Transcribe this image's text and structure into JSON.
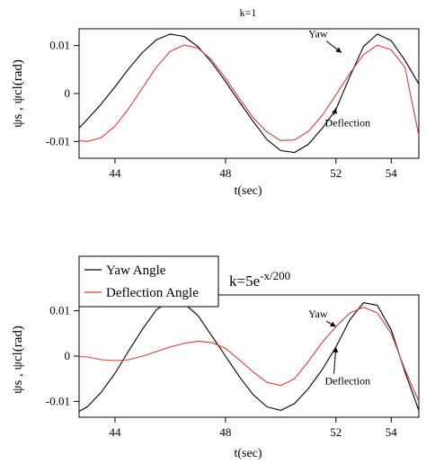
{
  "chart_data": [
    {
      "type": "line",
      "title": "k=1",
      "xlabel": "t(sec)",
      "ylabel": "ψs , ψcl(rad)",
      "xlim": [
        42.7,
        55.0
      ],
      "ylim": [
        -0.0135,
        0.0135
      ],
      "xticks": [
        "44",
        "48",
        "52",
        "54"
      ],
      "xtick_values": [
        44,
        48,
        52,
        54
      ],
      "yticks": [
        "0.01",
        "0",
        "-0.01"
      ],
      "ytick_values": [
        0.01,
        0,
        -0.01
      ],
      "grid": false,
      "series": [
        {
          "color": "#000000",
          "x": [
            42.7,
            43.0,
            43.5,
            44.0,
            44.5,
            45.0,
            45.5,
            46.0,
            46.5,
            47.0,
            47.5,
            48.0,
            48.5,
            49.0,
            49.5,
            50.0,
            50.5,
            51.0,
            51.5,
            52.0,
            52.5,
            53.0,
            53.5,
            54.0,
            54.5,
            55.0
          ],
          "y": [
            -0.0072,
            -0.0054,
            -0.0022,
            0.0014,
            0.0052,
            0.0086,
            0.0112,
            0.0124,
            0.0119,
            0.0098,
            0.0065,
            0.0025,
            -0.0017,
            -0.0058,
            -0.0096,
            -0.0119,
            -0.0123,
            -0.0106,
            -0.0073,
            -0.0033,
            0.0035,
            0.0098,
            0.0124,
            0.011,
            0.0069,
            0.002
          ]
        },
        {
          "color": "#e03a3a",
          "x": [
            42.7,
            43.0,
            43.5,
            44.0,
            44.5,
            45.0,
            45.5,
            46.0,
            46.5,
            47.0,
            47.5,
            48.0,
            48.5,
            49.0,
            49.5,
            50.0,
            50.5,
            51.0,
            51.5,
            52.0,
            52.5,
            53.0,
            53.5,
            54.0,
            54.5,
            55.0
          ],
          "y": [
            -0.0098,
            -0.01,
            -0.0092,
            -0.0068,
            -0.0031,
            0.0012,
            0.0055,
            0.0088,
            0.0101,
            0.0095,
            0.007,
            0.0032,
            -0.001,
            -0.005,
            -0.008,
            -0.0098,
            -0.0097,
            -0.0079,
            -0.0046,
            -0.0003,
            0.0042,
            0.0081,
            0.0101,
            0.0091,
            0.0055,
            -0.0088
          ]
        }
      ],
      "annotations": [
        {
          "text": "Yaw",
          "x": 51.0,
          "y": 0.0117
        },
        {
          "text": "Deflection",
          "x": 51.6,
          "y": -0.0068
        }
      ]
    },
    {
      "type": "line",
      "title": "k=5e",
      "title_superscript": "-x/200",
      "xlabel": "t(sec)",
      "ylabel": "ψs , ψcl(rad)",
      "xlim": [
        42.7,
        55.0
      ],
      "ylim": [
        -0.0135,
        0.0135
      ],
      "xticks": [
        "44",
        "48",
        "52",
        "54"
      ],
      "xtick_values": [
        44,
        48,
        52,
        54
      ],
      "yticks": [
        "0.01",
        "0",
        "-0.01"
      ],
      "ytick_values": [
        0.01,
        0,
        -0.01
      ],
      "grid": false,
      "legend_position": "top-left",
      "series": [
        {
          "name": "Yaw Angle",
          "color": "#000000",
          "x": [
            42.7,
            43.0,
            43.5,
            44.0,
            44.5,
            45.0,
            45.5,
            46.0,
            46.5,
            47.0,
            47.5,
            48.0,
            48.5,
            49.0,
            49.5,
            50.0,
            50.5,
            51.0,
            51.5,
            52.0,
            52.5,
            53.0,
            53.5,
            54.0,
            54.5,
            55.0
          ],
          "y": [
            -0.0122,
            -0.0112,
            -0.008,
            -0.0038,
            0.0012,
            0.006,
            0.0102,
            0.0123,
            0.0116,
            0.009,
            0.0045,
            0.0,
            -0.0045,
            -0.0085,
            -0.0112,
            -0.012,
            -0.0105,
            -0.0072,
            -0.003,
            0.002,
            0.008,
            0.0118,
            0.0112,
            0.0058,
            -0.0035,
            -0.012
          ]
        },
        {
          "name": "Deflection Angle",
          "color": "#e03a3a",
          "x": [
            42.7,
            43.0,
            43.5,
            44.0,
            44.5,
            45.0,
            45.5,
            46.0,
            46.5,
            47.0,
            47.5,
            48.0,
            48.5,
            49.0,
            49.5,
            50.0,
            50.5,
            51.0,
            51.5,
            52.0,
            52.5,
            53.0,
            53.5,
            54.0,
            54.5,
            55.0
          ],
          "y": [
            -0.0001,
            -0.0002,
            -0.0008,
            -0.001,
            -0.0008,
            0.0,
            0.001,
            0.002,
            0.0028,
            0.0033,
            0.003,
            0.0017,
            -0.0008,
            -0.0035,
            -0.0058,
            -0.0065,
            -0.005,
            -0.0012,
            0.003,
            0.0065,
            0.0095,
            0.0108,
            0.0095,
            0.005,
            -0.003,
            -0.01
          ]
        }
      ],
      "annotations": [
        {
          "text": "Yaw",
          "x": 51.0,
          "y": 0.0085
        },
        {
          "text": "Deflection",
          "x": 51.6,
          "y": -0.0063
        }
      ]
    }
  ]
}
